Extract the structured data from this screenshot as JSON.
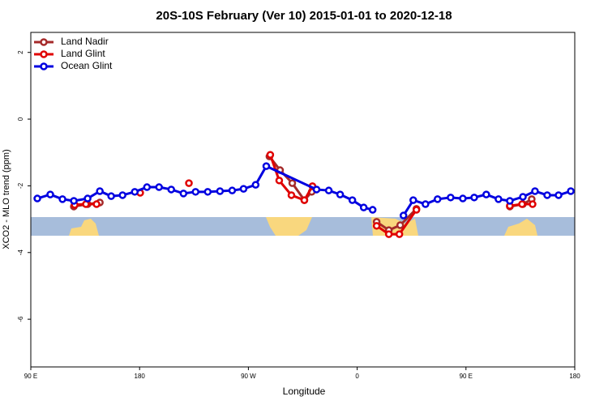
{
  "chart_data": {
    "type": "line",
    "title": "20S-10S February (Ver 10)   2015-01-01 to 2020-12-18",
    "x_label": "Longitude",
    "y_label": "XCO2 - MLO trend (ppm)",
    "xlim": [
      90,
      540
    ],
    "ylim": [
      -7.43,
      2.6
    ],
    "xticks": [
      {
        "value": 90,
        "label": "90 E"
      },
      180,
      {
        "value": 270,
        "label": "90 W"
      },
      {
        "value": 360,
        "label": "0"
      },
      {
        "value": 450,
        "label": "90 E"
      },
      {
        "value": 540,
        "label": "180"
      }
    ],
    "yticks": [
      2,
      0,
      -2,
      -4,
      -6
    ],
    "legend": "topleft",
    "series": [
      {
        "name": "Land Nadir",
        "color": "#a52a2a",
        "x": [
          125.6,
          137.0,
          147.1,
          null,
          287.4,
          296.2,
          306.3,
          316.3,
          322.4,
          null,
          376.1,
          386.2,
          395.6,
          409.0,
          null,
          486.3,
          497.1,
          504.4
        ],
        "values": [
          -2.62,
          -2.55,
          -2.5,
          null,
          -1.12,
          -1.53,
          -1.92,
          -2.43,
          -2.18,
          null,
          -3.08,
          -3.33,
          -3.18,
          -2.69,
          null,
          -2.62,
          -2.55,
          -2.4
        ]
      },
      {
        "name": "Land Glint",
        "color": "#e00000",
        "x": [
          126.3,
          135.6,
          144.4,
          null,
          180.5,
          null,
          220.8,
          null,
          288.1,
          295.5,
          305.6,
          316.3,
          323.0,
          null,
          376.1,
          386.2,
          394.9,
          409.0,
          null,
          486.3,
          496.4,
          505.1
        ],
        "values": [
          -2.57,
          -2.55,
          -2.55,
          null,
          -2.21,
          null,
          -1.92,
          null,
          -1.07,
          -1.84,
          -2.28,
          -2.43,
          -2.01,
          null,
          -3.2,
          -3.45,
          -3.45,
          -2.72,
          null,
          -2.6,
          -2.55,
          -2.55
        ]
      },
      {
        "name": "Ocean Glint",
        "color": "#0000e0",
        "x": [
          95.4,
          106.1,
          116.2,
          125.6,
          137.0,
          147.1,
          156.5,
          165.9,
          176.0,
          186.1,
          196.1,
          206.2,
          216.3,
          226.3,
          236.4,
          246.5,
          256.6,
          266.0,
          276.0,
          284.8,
          326.4,
          336.5,
          345.9,
          356.0,
          365.4,
          372.8,
          null,
          398.3,
          406.4,
          416.5,
          426.5,
          437.3,
          447.4,
          456.8,
          466.8,
          476.9,
          486.3,
          497.1,
          507.1,
          517.2,
          526.6,
          536.7
        ],
        "values": [
          -2.38,
          -2.26,
          -2.4,
          -2.45,
          -2.38,
          -2.16,
          -2.31,
          -2.28,
          -2.18,
          -2.04,
          -2.04,
          -2.11,
          -2.23,
          -2.18,
          -2.18,
          -2.16,
          -2.14,
          -2.09,
          -1.97,
          -1.41,
          -2.11,
          -2.14,
          -2.26,
          -2.43,
          -2.65,
          -2.72,
          null,
          -2.89,
          -2.43,
          -2.55,
          -2.4,
          -2.35,
          -2.38,
          -2.35,
          -2.26,
          -2.4,
          -2.45,
          -2.33,
          -2.16,
          -2.28,
          -2.28,
          -2.16
        ]
      }
    ]
  }
}
